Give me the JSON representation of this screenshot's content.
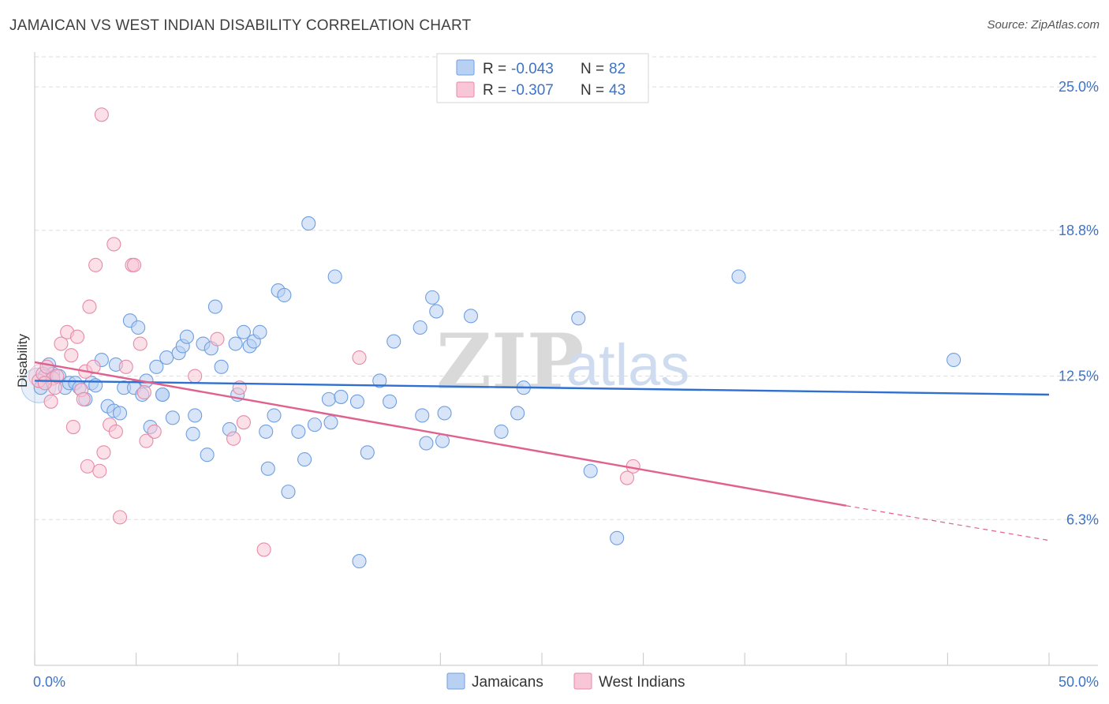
{
  "header": {
    "title": "JAMAICAN VS WEST INDIAN DISABILITY CORRELATION CHART",
    "source": "Source: ZipAtlas.com"
  },
  "watermark": {
    "zip": "ZIP",
    "atlas": "atlas"
  },
  "colors": {
    "blue_fill": "#b8d0f2",
    "blue_stroke": "#6e9fe0",
    "blue_line": "#2f6fd0",
    "pink_fill": "#f8c6d6",
    "pink_stroke": "#e78aaa",
    "pink_line": "#e0608e",
    "tick_text": "#3f73c4",
    "grid": "#dedede"
  },
  "legend": {
    "rows": [
      {
        "r_label": "R =",
        "r_value": "-0.043",
        "n_label": "N =",
        "n_value": "82"
      },
      {
        "r_label": "R =",
        "r_value": "-0.307",
        "n_label": "N =",
        "n_value": "43"
      }
    ]
  },
  "chart_data": {
    "type": "scatter",
    "title": "JAMAICAN VS WEST INDIAN DISABILITY CORRELATION CHART",
    "xlabel": "",
    "ylabel": "Disability",
    "xlim": [
      0,
      50
    ],
    "ylim": [
      0,
      26.3
    ],
    "x_tick_labels": [
      "0.0%",
      "50.0%"
    ],
    "y_ticks": [
      6.3,
      12.5,
      18.8,
      25.0
    ],
    "y_tick_labels": [
      "6.3%",
      "12.5%",
      "18.8%",
      "25.0%"
    ],
    "grid": true,
    "legend_position": "bottom",
    "series": [
      {
        "name": "Jamaicans",
        "r": -0.043,
        "n": 82,
        "trend": {
          "x": [
            0,
            50
          ],
          "y": [
            12.3,
            11.7
          ]
        },
        "points": [
          [
            0.3,
            12.0
          ],
          [
            0.5,
            12.5
          ],
          [
            0.7,
            13.0
          ],
          [
            0.9,
            12.6
          ],
          [
            1.2,
            12.5
          ],
          [
            1.5,
            12.0
          ],
          [
            1.7,
            12.2
          ],
          [
            2.0,
            12.2
          ],
          [
            2.2,
            12.0
          ],
          [
            2.5,
            11.5
          ],
          [
            2.8,
            12.2
          ],
          [
            3.0,
            12.1
          ],
          [
            3.3,
            13.2
          ],
          [
            3.6,
            11.2
          ],
          [
            3.9,
            11.0
          ],
          [
            4.0,
            13.0
          ],
          [
            4.2,
            10.9
          ],
          [
            4.4,
            12.0
          ],
          [
            4.7,
            14.9
          ],
          [
            4.9,
            12.0
          ],
          [
            5.1,
            14.6
          ],
          [
            5.3,
            11.7
          ],
          [
            5.5,
            12.3
          ],
          [
            5.7,
            10.3
          ],
          [
            6.0,
            12.9
          ],
          [
            6.3,
            11.7
          ],
          [
            6.5,
            13.3
          ],
          [
            6.8,
            10.7
          ],
          [
            7.1,
            13.5
          ],
          [
            7.3,
            13.8
          ],
          [
            7.5,
            14.2
          ],
          [
            7.8,
            10.0
          ],
          [
            7.9,
            10.8
          ],
          [
            8.3,
            13.9
          ],
          [
            8.5,
            9.1
          ],
          [
            8.7,
            13.7
          ],
          [
            8.9,
            15.5
          ],
          [
            9.2,
            12.9
          ],
          [
            9.6,
            10.2
          ],
          [
            10.0,
            11.7
          ],
          [
            10.3,
            14.4
          ],
          [
            10.6,
            13.8
          ],
          [
            10.8,
            14.0
          ],
          [
            11.1,
            14.4
          ],
          [
            11.4,
            10.1
          ],
          [
            11.5,
            8.5
          ],
          [
            11.8,
            10.8
          ],
          [
            12.0,
            16.2
          ],
          [
            12.3,
            16.0
          ],
          [
            12.5,
            7.5
          ],
          [
            13.0,
            10.1
          ],
          [
            13.3,
            8.9
          ],
          [
            13.5,
            19.1
          ],
          [
            13.8,
            10.4
          ],
          [
            14.6,
            10.5
          ],
          [
            14.8,
            16.8
          ],
          [
            14.5,
            11.5
          ],
          [
            15.1,
            11.6
          ],
          [
            15.9,
            11.4
          ],
          [
            16.0,
            4.5
          ],
          [
            16.4,
            9.2
          ],
          [
            17.0,
            12.3
          ],
          [
            17.5,
            11.4
          ],
          [
            17.7,
            14.0
          ],
          [
            19.0,
            14.6
          ],
          [
            19.1,
            10.8
          ],
          [
            19.3,
            9.6
          ],
          [
            19.6,
            15.9
          ],
          [
            19.8,
            15.3
          ],
          [
            20.1,
            9.7
          ],
          [
            20.2,
            10.9
          ],
          [
            21.5,
            15.1
          ],
          [
            23.0,
            10.1
          ],
          [
            23.8,
            10.9
          ],
          [
            24.1,
            12.0
          ],
          [
            26.8,
            15.0
          ],
          [
            27.4,
            8.4
          ],
          [
            28.7,
            5.5
          ],
          [
            34.7,
            16.8
          ],
          [
            45.3,
            13.2
          ],
          [
            6.3,
            11.7
          ],
          [
            9.9,
            13.9
          ]
        ]
      },
      {
        "name": "West Indians",
        "r": -0.307,
        "n": 43,
        "trend": {
          "x": [
            0,
            40,
            50
          ],
          "y": [
            13.1,
            6.9,
            5.4
          ]
        },
        "points": [
          [
            0.2,
            12.3
          ],
          [
            0.4,
            12.6
          ],
          [
            0.6,
            12.9
          ],
          [
            0.8,
            11.4
          ],
          [
            0.9,
            12.4
          ],
          [
            1.0,
            12.0
          ],
          [
            1.3,
            13.9
          ],
          [
            1.6,
            14.4
          ],
          [
            1.8,
            13.4
          ],
          [
            1.9,
            10.3
          ],
          [
            2.1,
            14.2
          ],
          [
            2.3,
            11.9
          ],
          [
            2.4,
            11.5
          ],
          [
            2.5,
            12.7
          ],
          [
            2.6,
            8.6
          ],
          [
            2.7,
            15.5
          ],
          [
            2.9,
            12.9
          ],
          [
            3.0,
            17.3
          ],
          [
            3.2,
            8.4
          ],
          [
            3.4,
            9.2
          ],
          [
            3.7,
            10.4
          ],
          [
            3.9,
            18.2
          ],
          [
            4.0,
            10.1
          ],
          [
            4.2,
            6.4
          ],
          [
            4.5,
            12.9
          ],
          [
            4.8,
            17.3
          ],
          [
            4.9,
            17.3
          ],
          [
            5.2,
            13.9
          ],
          [
            5.4,
            11.8
          ],
          [
            5.5,
            9.7
          ],
          [
            5.9,
            10.1
          ],
          [
            7.9,
            12.5
          ],
          [
            9.0,
            14.1
          ],
          [
            9.8,
            9.8
          ],
          [
            10.1,
            12.0
          ],
          [
            10.3,
            10.5
          ],
          [
            11.3,
            5.0
          ],
          [
            16.0,
            13.3
          ],
          [
            29.5,
            8.6
          ],
          [
            29.2,
            8.1
          ],
          [
            3.3,
            23.8
          ],
          [
            1.1,
            12.5
          ],
          [
            0.5,
            12.2
          ]
        ]
      }
    ]
  },
  "bottom_legend": {
    "items": [
      "Jamaicans",
      "West Indians"
    ]
  }
}
